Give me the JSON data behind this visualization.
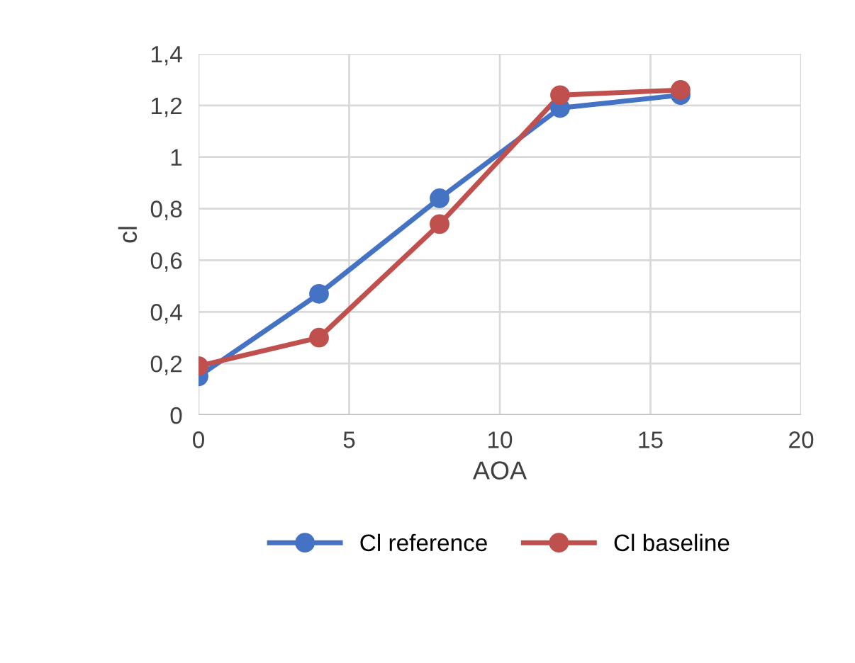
{
  "chart_data": {
    "type": "line",
    "xlabel": "AOA",
    "ylabel": "cl",
    "x": [
      0,
      4,
      8,
      12,
      16
    ],
    "series": [
      {
        "name": "Cl reference",
        "color": "#4472c4",
        "values": [
          0.15,
          0.47,
          0.84,
          1.19,
          1.24
        ]
      },
      {
        "name": "Cl baseline",
        "color": "#c0504d",
        "values": [
          0.19,
          0.3,
          0.74,
          1.24,
          1.26
        ]
      }
    ],
    "xlim": [
      0,
      20
    ],
    "xticks": [
      0,
      5,
      10,
      15,
      20
    ],
    "ylim": [
      0,
      1.4
    ],
    "yticks": [
      0,
      {
        "value": 0.2,
        "label": "0,2"
      },
      {
        "value": 0.4,
        "label": "0,4"
      },
      {
        "value": 0.6,
        "label": "0,6"
      },
      {
        "value": 0.8,
        "label": "0,8"
      },
      1,
      {
        "value": 1.2,
        "label": "1,2"
      },
      {
        "value": 1.4,
        "label": "1,4"
      }
    ],
    "grid": true,
    "legend": "bottom",
    "marker": "circle",
    "line_style": "solid"
  }
}
